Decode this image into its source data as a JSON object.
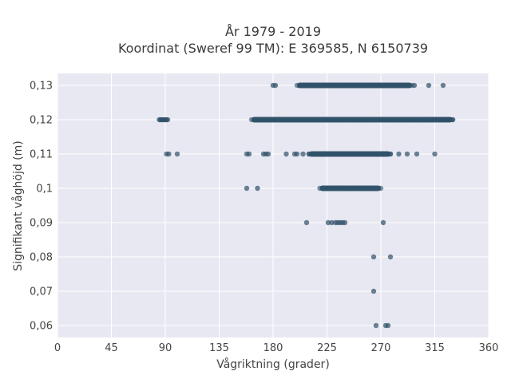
{
  "chart_data": {
    "type": "scatter",
    "title": "År 1979 - 2019",
    "subtitle": "Koordinat (Sweref 99 TM): E 369585, N 6150739",
    "xlabel": "Vågriktning (grader)",
    "ylabel": "Signifikant våghöjd (m)",
    "xlim": [
      0,
      360
    ],
    "ylim": [
      0.0565,
      0.1335
    ],
    "x_ticks": [
      0,
      45,
      90,
      135,
      180,
      225,
      270,
      315,
      360
    ],
    "x_tick_labels": [
      "0",
      "45",
      "90",
      "135",
      "180",
      "225",
      "270",
      "315",
      "360"
    ],
    "y_ticks": [
      0.06,
      0.07,
      0.08,
      0.09,
      0.1,
      0.11,
      0.12,
      0.13
    ],
    "y_tick_labels": [
      "0,06",
      "0,07",
      "0,08",
      "0,09",
      "0,1",
      "0,11",
      "0,12",
      "0,13"
    ],
    "grid": true,
    "marker_color": "#2f5068",
    "background_color": "#e8e8f2",
    "points": [
      {
        "x": 266,
        "y": 0.06
      },
      {
        "x": 274,
        "y": 0.06
      },
      {
        "x": 276,
        "y": 0.06
      },
      {
        "x": 264,
        "y": 0.07
      },
      {
        "x": 264,
        "y": 0.08
      },
      {
        "x": 278,
        "y": 0.08
      },
      {
        "x": 208,
        "y": 0.09
      },
      {
        "x": 226,
        "y": 0.09
      },
      {
        "x": 229,
        "y": 0.09
      },
      {
        "x": 232,
        "y": 0.09
      },
      {
        "x": 234,
        "y": 0.09
      },
      {
        "x": 236,
        "y": 0.09
      },
      {
        "x": 238,
        "y": 0.09
      },
      {
        "x": 240,
        "y": 0.09
      },
      {
        "x": 272,
        "y": 0.09
      },
      {
        "x": 158,
        "y": 0.1
      },
      {
        "x": 167,
        "y": 0.1
      },
      {
        "x": 91,
        "y": 0.11
      },
      {
        "x": 93,
        "y": 0.11
      },
      {
        "x": 100,
        "y": 0.11
      },
      {
        "x": 158,
        "y": 0.11
      },
      {
        "x": 160,
        "y": 0.11
      },
      {
        "x": 172,
        "y": 0.11
      },
      {
        "x": 174,
        "y": 0.11
      },
      {
        "x": 176,
        "y": 0.11
      },
      {
        "x": 191,
        "y": 0.11
      },
      {
        "x": 198,
        "y": 0.11
      },
      {
        "x": 200,
        "y": 0.11
      },
      {
        "x": 205,
        "y": 0.11
      },
      {
        "x": 210,
        "y": 0.11
      },
      {
        "x": 278,
        "y": 0.11
      },
      {
        "x": 285,
        "y": 0.11
      },
      {
        "x": 292,
        "y": 0.11
      },
      {
        "x": 300,
        "y": 0.11
      },
      {
        "x": 315,
        "y": 0.11
      },
      {
        "x": 85,
        "y": 0.12
      },
      {
        "x": 86,
        "y": 0.12
      },
      {
        "x": 87,
        "y": 0.12
      },
      {
        "x": 88,
        "y": 0.12
      },
      {
        "x": 89,
        "y": 0.12
      },
      {
        "x": 90,
        "y": 0.12
      },
      {
        "x": 91,
        "y": 0.12
      },
      {
        "x": 92,
        "y": 0.12
      },
      {
        "x": 312,
        "y": 0.12
      },
      {
        "x": 318,
        "y": 0.12
      },
      {
        "x": 322,
        "y": 0.12
      },
      {
        "x": 326,
        "y": 0.12
      },
      {
        "x": 330,
        "y": 0.12
      },
      {
        "x": 180,
        "y": 0.13
      },
      {
        "x": 182,
        "y": 0.13
      },
      {
        "x": 298,
        "y": 0.13
      },
      {
        "x": 310,
        "y": 0.13
      },
      {
        "x": 322,
        "y": 0.13
      }
    ],
    "dense_ranges": [
      {
        "y": 0.13,
        "x_from": 200,
        "x_to": 296
      },
      {
        "y": 0.12,
        "x_from": 162,
        "x_to": 330
      },
      {
        "y": 0.11,
        "x_from": 210,
        "x_to": 278
      },
      {
        "y": 0.1,
        "x_from": 219,
        "x_to": 270
      }
    ]
  }
}
